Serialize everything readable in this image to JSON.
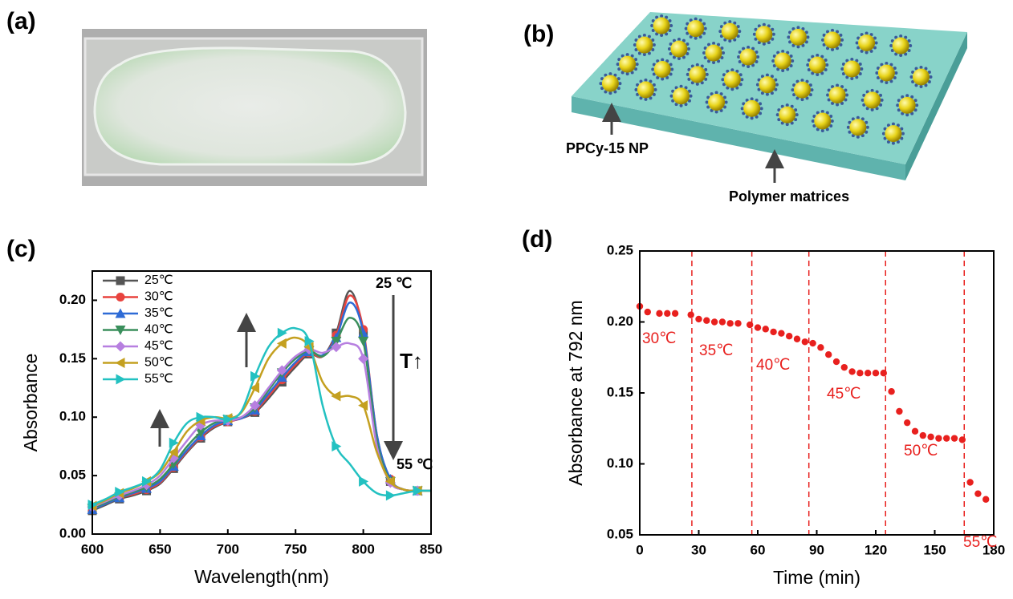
{
  "panel_labels": [
    "(a)",
    "(b)",
    "(c)",
    "(d)"
  ],
  "diagram": {
    "nanoparticle_label": "PPCy-15 NP",
    "matrix_label": "Polymer matrices"
  },
  "chart_data": [
    {
      "type": "line",
      "xlabel": "Wavelength(nm)",
      "ylabel": "Absorbance",
      "x": [
        600,
        610,
        620,
        630,
        640,
        650,
        660,
        670,
        680,
        690,
        700,
        710,
        720,
        730,
        740,
        750,
        760,
        770,
        780,
        790,
        800,
        810,
        820,
        830,
        840,
        850
      ],
      "xlim": [
        600,
        850
      ],
      "xticks": [
        600,
        650,
        700,
        750,
        800,
        850
      ],
      "ylim": [
        0,
        0.225
      ],
      "yticks": [
        {
          "value": 0,
          "label": "0.00"
        },
        0.05,
        {
          "value": 0.1,
          "label": "0.10"
        },
        0.15,
        {
          "value": 0.2,
          "label": "0.20"
        }
      ],
      "annotations": [
        "25 ℃",
        "T↑",
        "55 ℃"
      ],
      "series": [
        {
          "name": "25℃",
          "color": "#555555",
          "marker": "square",
          "values": [
            0.02,
            0.025,
            0.03,
            0.033,
            0.037,
            0.043,
            0.056,
            0.07,
            0.082,
            0.091,
            0.096,
            0.099,
            0.104,
            0.116,
            0.13,
            0.143,
            0.154,
            0.152,
            0.172,
            0.208,
            0.172,
            0.08,
            0.045,
            0.038,
            0.037,
            0.037
          ]
        },
        {
          "name": "30℃",
          "color": "#e8433e",
          "marker": "circle",
          "values": [
            0.021,
            0.026,
            0.031,
            0.034,
            0.038,
            0.044,
            0.057,
            0.071,
            0.083,
            0.092,
            0.096,
            0.099,
            0.105,
            0.118,
            0.132,
            0.145,
            0.155,
            0.152,
            0.17,
            0.204,
            0.175,
            0.085,
            0.047,
            0.038,
            0.037,
            0.037
          ]
        },
        {
          "name": "35℃",
          "color": "#2e6bd6",
          "marker": "triangle-up",
          "values": [
            0.021,
            0.026,
            0.031,
            0.035,
            0.039,
            0.045,
            0.058,
            0.072,
            0.084,
            0.093,
            0.097,
            0.099,
            0.106,
            0.12,
            0.134,
            0.147,
            0.156,
            0.153,
            0.168,
            0.198,
            0.172,
            0.085,
            0.047,
            0.038,
            0.037,
            0.037
          ]
        },
        {
          "name": "40℃",
          "color": "#3a8f5c",
          "marker": "triangle-down",
          "values": [
            0.022,
            0.027,
            0.032,
            0.036,
            0.04,
            0.047,
            0.06,
            0.075,
            0.087,
            0.095,
            0.098,
            0.1,
            0.108,
            0.123,
            0.138,
            0.15,
            0.157,
            0.152,
            0.165,
            0.185,
            0.165,
            0.08,
            0.045,
            0.038,
            0.037,
            0.037
          ]
        },
        {
          "name": "45℃",
          "color": "#b77fe0",
          "marker": "diamond",
          "values": [
            0.023,
            0.028,
            0.033,
            0.037,
            0.042,
            0.05,
            0.065,
            0.08,
            0.093,
            0.097,
            0.097,
            0.1,
            0.11,
            0.125,
            0.14,
            0.152,
            0.158,
            0.155,
            0.16,
            0.163,
            0.15,
            0.075,
            0.044,
            0.038,
            0.037,
            0.037
          ]
        },
        {
          "name": "50℃",
          "color": "#c4a020",
          "marker": "triangle-left",
          "values": [
            0.024,
            0.029,
            0.035,
            0.039,
            0.045,
            0.053,
            0.07,
            0.088,
            0.097,
            0.1,
            0.099,
            0.104,
            0.125,
            0.15,
            0.163,
            0.168,
            0.16,
            0.13,
            0.118,
            0.118,
            0.11,
            0.07,
            0.045,
            0.038,
            0.037,
            0.037
          ]
        },
        {
          "name": "55℃",
          "color": "#23c1c1",
          "marker": "triangle-right",
          "values": [
            0.025,
            0.03,
            0.036,
            0.04,
            0.045,
            0.055,
            0.078,
            0.095,
            0.1,
            0.1,
            0.098,
            0.105,
            0.135,
            0.16,
            0.172,
            0.176,
            0.165,
            0.11,
            0.075,
            0.06,
            0.045,
            0.035,
            0.033,
            0.035,
            0.037,
            0.037
          ]
        }
      ]
    },
    {
      "type": "scatter",
      "xlabel": "Time (min)",
      "ylabel": "Absorbance at 792 nm",
      "color": "#e8201e",
      "x": [
        0,
        4,
        10,
        14,
        18,
        26,
        30,
        34,
        38,
        42,
        46,
        50,
        56,
        60,
        64,
        68,
        72,
        76,
        80,
        84,
        88,
        92,
        96,
        100,
        104,
        108,
        112,
        116,
        120,
        124,
        128,
        132,
        136,
        140,
        144,
        148,
        152,
        156,
        160,
        164,
        168,
        172,
        176
      ],
      "values": [
        0.211,
        0.207,
        0.206,
        0.206,
        0.206,
        0.205,
        0.202,
        0.201,
        0.2,
        0.2,
        0.199,
        0.199,
        0.198,
        0.196,
        0.195,
        0.193,
        0.192,
        0.19,
        0.188,
        0.186,
        0.185,
        0.182,
        0.177,
        0.172,
        0.168,
        0.165,
        0.164,
        0.164,
        0.164,
        0.164,
        0.151,
        0.137,
        0.129,
        0.123,
        0.12,
        0.119,
        0.118,
        0.118,
        0.118,
        0.117,
        0.087,
        0.079,
        0.075
      ],
      "xlim": [
        0,
        180
      ],
      "xticks": [
        0,
        30,
        60,
        90,
        120,
        150,
        180
      ],
      "ylim": [
        0.05,
        0.25
      ],
      "yticks": [
        0.05,
        {
          "value": 0.1,
          "label": "0.10"
        },
        0.15,
        {
          "value": 0.2,
          "label": "0.20"
        },
        0.25
      ],
      "vlines": [
        26.5,
        57,
        86,
        125,
        165
      ],
      "annotations": [
        "30℃",
        "35℃",
        "40℃",
        "45℃",
        "50℃",
        "55℃"
      ]
    }
  ]
}
